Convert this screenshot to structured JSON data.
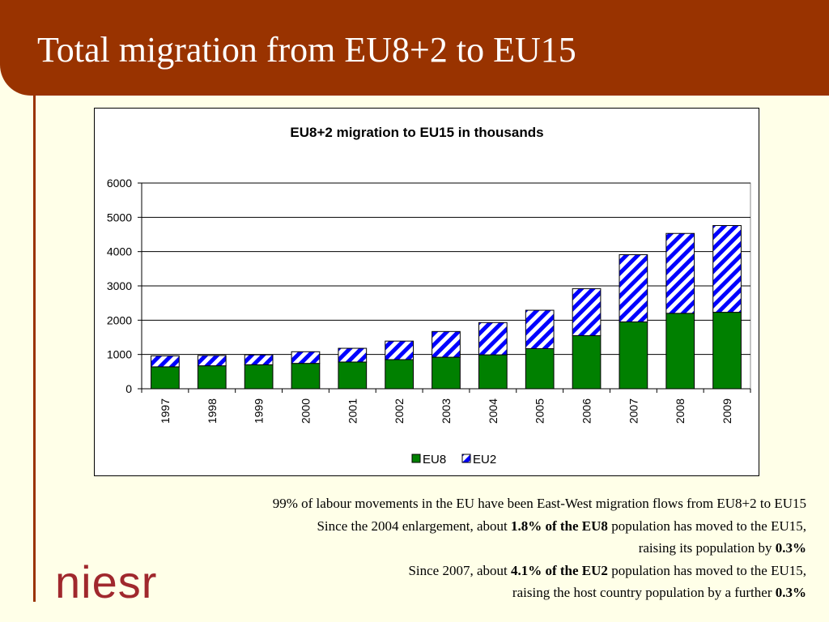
{
  "slide": {
    "title": "Total migration from EU8+2 to EU15",
    "logo_text": "niesr"
  },
  "colors": {
    "title_bar": "#993300",
    "background": "#FFFFE8",
    "eu8": "#008000",
    "eu2_stripe": "#0000FF",
    "logo": "#A0282D"
  },
  "chart_data": {
    "type": "bar",
    "stacked": true,
    "title": "EU8+2 migration to EU15 in thousands",
    "xlabel": "",
    "ylabel": "",
    "categories": [
      "1997",
      "1998",
      "1999",
      "2000",
      "2001",
      "2002",
      "2003",
      "2004",
      "2005",
      "2006",
      "2007",
      "2008",
      "2009"
    ],
    "series": [
      {
        "name": "EU8",
        "values": [
          640,
          670,
          700,
          740,
          780,
          850,
          920,
          990,
          1170,
          1550,
          1950,
          2200,
          2230
        ],
        "color": "#008000",
        "pattern": "solid"
      },
      {
        "name": "EU2",
        "values": [
          320,
          300,
          290,
          340,
          400,
          540,
          750,
          940,
          1120,
          1370,
          1960,
          2330,
          2530
        ],
        "color": "#0000FF",
        "pattern": "diagonal-stripes"
      }
    ],
    "ylim": [
      0,
      6000
    ],
    "yticks": [
      0,
      1000,
      2000,
      3000,
      4000,
      5000,
      6000
    ],
    "grid": true,
    "legend_position": "bottom"
  },
  "notes": {
    "line1": "99% of labour movements in the EU have been East-West migration flows from EU8+2 to EU15",
    "line2_pre": "Since the 2004 enlargement, about ",
    "line2_bold": "1.8% of the EU8",
    "line2_post": " population has moved to the EU15,",
    "line3_pre": "raising its population by ",
    "line3_bold": "0.3%",
    "line4_pre": "Since 2007, about ",
    "line4_bold": "4.1% of the EU2",
    "line4_post": " population has moved to the EU15,",
    "line5_pre": "raising the host country population by a further ",
    "line5_bold": "0.3%"
  }
}
